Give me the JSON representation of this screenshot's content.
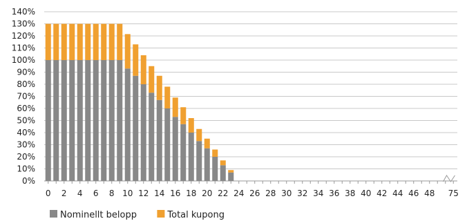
{
  "chart_data": {
    "type": "bar",
    "stacked": true,
    "x": [
      0,
      1,
      2,
      3,
      4,
      5,
      6,
      7,
      8,
      9,
      10,
      11,
      12,
      13,
      14,
      15,
      16,
      17,
      18,
      19,
      20,
      21,
      22,
      23,
      24,
      25,
      26,
      27,
      28,
      29,
      30,
      31,
      32,
      33,
      34,
      35,
      36,
      37,
      38,
      39,
      40,
      41,
      42,
      43,
      44,
      45,
      46,
      47,
      48,
      49,
      50,
      75
    ],
    "x_tick_labels": [
      "0",
      "2",
      "4",
      "6",
      "8",
      "10",
      "12",
      "14",
      "16",
      "18",
      "20",
      "22",
      "24",
      "26",
      "28",
      "30",
      "32",
      "34",
      "36",
      "38",
      "40",
      "42",
      "44",
      "46",
      "48",
      "75"
    ],
    "axis_break_between": [
      49,
      75
    ],
    "ylim": [
      0,
      140
    ],
    "y_tick_labels": [
      "0%",
      "10%",
      "20%",
      "30%",
      "40%",
      "50%",
      "60%",
      "70%",
      "80%",
      "90%",
      "100%",
      "110%",
      "120%",
      "130%",
      "140%"
    ],
    "grid": true,
    "legend_position": "bottom-left",
    "series": [
      {
        "name": "Nominellt belopp",
        "color": "#888888",
        "values": [
          100,
          100,
          100,
          100,
          100,
          100,
          100,
          100,
          100,
          100,
          93,
          87,
          80,
          73,
          67,
          60,
          53,
          47,
          40,
          33,
          27,
          20,
          13,
          7,
          0,
          0,
          0,
          0,
          0,
          0,
          0,
          0,
          0,
          0,
          0,
          0,
          0,
          0,
          0,
          0,
          0,
          0,
          0,
          0,
          0,
          0,
          0,
          0,
          0,
          0,
          0,
          0
        ]
      },
      {
        "name": "Total kupong",
        "color": "#f0a030",
        "values": [
          30,
          30,
          30,
          30,
          30,
          30,
          30,
          30,
          30,
          30,
          28.5,
          26,
          24,
          22,
          20,
          18,
          16,
          14,
          12,
          10,
          8,
          6,
          4,
          2,
          0,
          0,
          0,
          0,
          0,
          0,
          0,
          0,
          0,
          0,
          0,
          0,
          0,
          0,
          0,
          0,
          0,
          0,
          0,
          0,
          0,
          0,
          0,
          0,
          0,
          0,
          0,
          0
        ]
      }
    ]
  }
}
